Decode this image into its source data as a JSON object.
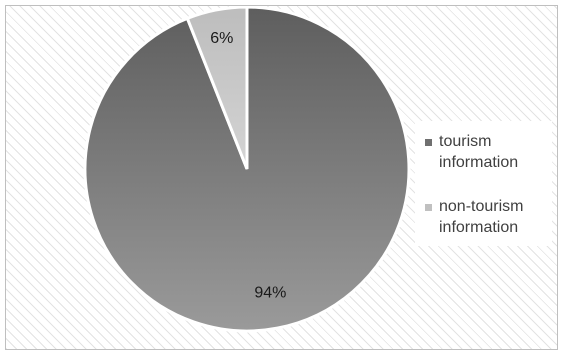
{
  "chart_data": {
    "type": "pie",
    "title": "",
    "slices": [
      {
        "label": "tourism information",
        "value": 94,
        "data_label": "94%",
        "color": "#7a7a7a"
      },
      {
        "label": "non-tourism information",
        "value": 6,
        "data_label": "6%",
        "color": "#c6c6c6"
      }
    ],
    "legend": {
      "placement": "right",
      "entries": [
        {
          "label": "tourism information",
          "color": "#707070"
        },
        {
          "label": "non-tourism information",
          "color": "#c0c0c0"
        }
      ]
    }
  }
}
